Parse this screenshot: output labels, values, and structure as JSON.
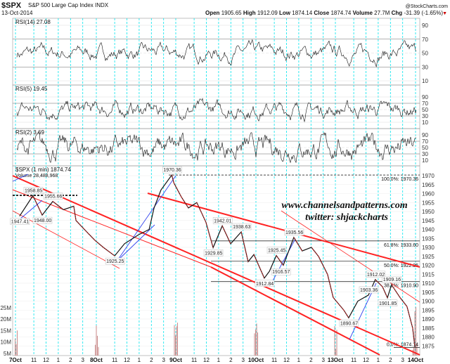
{
  "header": {
    "symbol": "$SPX",
    "name": "S&P 500 Large Cap Index INDX",
    "date": "13-Oct-2014",
    "credit": "@StockCharts.com",
    "open_label": "Open",
    "open": "1905.65",
    "high_label": "High",
    "high": "1912.09",
    "low_label": "Low",
    "low": "1874.14",
    "close_label": "Close",
    "close": "1874.74",
    "volume_label": "Volume",
    "volume": "27.7M",
    "chg_label": "Chg",
    "chg": "-31.39 (-1.65%)",
    "down_color": "#cc0000"
  },
  "watermark": {
    "line1": "www.channelsandpatterns.com",
    "line2": "twitter: shjackcharts"
  },
  "chart_data": {
    "type": "line",
    "panels": [
      {
        "indicator": "RSI(14)",
        "value": "27.08",
        "ticks": [
          90,
          70,
          50,
          30,
          10
        ]
      },
      {
        "indicator": "RSI(5)",
        "value": "19.45",
        "ticks": [
          90,
          70,
          50,
          30,
          10
        ]
      },
      {
        "indicator": "RSI(2)",
        "value": "3.69",
        "ticks": [
          90,
          70,
          50,
          30,
          10
        ]
      }
    ],
    "price": {
      "title": "$SPX (1 min) 1874.74",
      "volume_legend": "Volume 28,488,968",
      "ylim": [
        1872,
        1972
      ],
      "yticks": [
        1970,
        1965,
        1960,
        1955,
        1950,
        1945,
        1940,
        1935,
        1930,
        1925,
        1920,
        1915,
        1910,
        1905,
        1900,
        1895,
        1890,
        1885,
        1880,
        1875
      ],
      "volume_ticks": [
        "25M",
        "20M",
        "15M",
        "10M",
        "5M"
      ],
      "series": [
        [
          0,
          "09:50",
          1947.41
        ],
        [
          0,
          "10:56",
          1958.85
        ],
        [
          0,
          "11:41",
          1948.0
        ],
        [
          0,
          "12:33",
          1955.66
        ],
        [
          0,
          "13:25",
          1951
        ],
        [
          0,
          "14:16",
          1953
        ],
        [
          0,
          "14:27",
          1945
        ],
        [
          0,
          "15:25",
          1938
        ],
        [
          0,
          "15:59",
          1934
        ],
        [
          1,
          "10:04",
          1930
        ],
        [
          1,
          "11:00",
          1925.25
        ],
        [
          1,
          "11:48",
          1932
        ],
        [
          1,
          "12:57",
          1937
        ],
        [
          1,
          "13:49",
          1940
        ],
        [
          1,
          "14:13",
          1952
        ],
        [
          1,
          "14:47",
          1962
        ],
        [
          1,
          "15:40",
          1970.36
        ],
        [
          1,
          "15:50",
          1966
        ],
        [
          2,
          "09:58",
          1958
        ],
        [
          2,
          "10:32",
          1952
        ],
        [
          2,
          "11:13",
          1955
        ],
        [
          2,
          "11:58",
          1944
        ],
        [
          2,
          "12:33",
          1929.85
        ],
        [
          2,
          "13:18",
          1942.01
        ],
        [
          2,
          "13:59",
          1932
        ],
        [
          2,
          "14:51",
          1938.63
        ],
        [
          2,
          "15:25",
          1922
        ],
        [
          2,
          "15:53",
          1926
        ],
        [
          3,
          "10:11",
          1912.84
        ],
        [
          3,
          "10:36",
          1916.57
        ],
        [
          3,
          "11:10",
          1925.45
        ],
        [
          3,
          "11:44",
          1920
        ],
        [
          3,
          "12:36",
          1935.56
        ],
        [
          3,
          "13:17",
          1928
        ],
        [
          3,
          "14:02",
          1930
        ],
        [
          3,
          "14:37",
          1925
        ],
        [
          3,
          "15:21",
          1915
        ],
        [
          3,
          "15:49",
          1902
        ],
        [
          4,
          "10:11",
          1895
        ],
        [
          4,
          "10:35",
          1890.67
        ],
        [
          4,
          "11:20",
          1900
        ],
        [
          4,
          "12:12",
          1903.36
        ],
        [
          4,
          "12:46",
          1912.02
        ],
        [
          4,
          "13:21",
          1908
        ],
        [
          4,
          "13:45",
          1901.85
        ],
        [
          4,
          "14:05",
          1909.16
        ],
        [
          4,
          "14:47",
          1902
        ],
        [
          4,
          "15:21",
          1897
        ],
        [
          4,
          "15:49",
          1885
        ],
        [
          4,
          "16:00",
          1874.14
        ]
      ],
      "annotations": [
        {
          "text": "1947.41",
          "day": 0,
          "time": "09:50",
          "price": 1947.41,
          "pos": "below"
        },
        {
          "text": "1958.85",
          "day": 0,
          "time": "10:56",
          "price": 1958.85,
          "pos": "above"
        },
        {
          "text": "1955.66",
          "day": 0,
          "time": "12:33",
          "price": 1955.66,
          "pos": "above"
        },
        {
          "text": "1948.00",
          "day": 0,
          "time": "11:41",
          "price": 1948.0,
          "pos": "below"
        },
        {
          "text": "1925.25",
          "day": 1,
          "time": "11:00",
          "price": 1925.25,
          "pos": "below"
        },
        {
          "text": "1970.36",
          "day": 1,
          "time": "15:40",
          "price": 1970.36,
          "pos": "above"
        },
        {
          "text": "1929.85",
          "day": 2,
          "time": "12:33",
          "price": 1929.85,
          "pos": "below"
        },
        {
          "text": "1942.01",
          "day": 2,
          "time": "13:18",
          "price": 1942.01,
          "pos": "above"
        },
        {
          "text": "1938.63",
          "day": 2,
          "time": "14:51",
          "price": 1938.63,
          "pos": "above"
        },
        {
          "text": "1912.84",
          "day": 3,
          "time": "10:11",
          "price": 1912.84,
          "pos": "below"
        },
        {
          "text": "1916.57",
          "day": 3,
          "time": "10:36",
          "price": 1916.57,
          "pos": "right"
        },
        {
          "text": "1925.45",
          "day": 3,
          "time": "11:10",
          "price": 1925.45,
          "pos": "above"
        },
        {
          "text": "1935.56",
          "day": 3,
          "time": "12:36",
          "price": 1935.56,
          "pos": "above"
        },
        {
          "text": "1890.67",
          "day": 4,
          "time": "10:35",
          "price": 1890.67,
          "pos": "below"
        },
        {
          "text": "1903.36",
          "day": 4,
          "time": "12:12",
          "price": 1903.36,
          "pos": "above"
        },
        {
          "text": "1912.02",
          "day": 4,
          "time": "12:46",
          "price": 1912.02,
          "pos": "above"
        },
        {
          "text": "1909.16",
          "day": 4,
          "time": "14:05",
          "price": 1909.16,
          "pos": "above"
        },
        {
          "text": "1901.85",
          "day": 4,
          "time": "13:45",
          "price": 1901.85,
          "pos": "below"
        }
      ],
      "fib_levels": [
        {
          "label": "100.0%: 1970.36",
          "price": 1970.36
        },
        {
          "label": "61.8%: 1933.60",
          "price": 1933.6
        },
        {
          "label": "50.0%: 1922.25",
          "price": 1922.25
        },
        {
          "label": "38.2%: 1910.90",
          "price": 1910.9
        },
        {
          "label": "0.0%: 1874.14",
          "price": 1874.14
        }
      ]
    },
    "days": [
      "7Oct",
      "8Oct",
      "9Oct",
      "10Oct",
      "13Oct",
      "14Oct"
    ],
    "hour_ticks": [
      "11",
      "12",
      "1",
      "2",
      "3"
    ],
    "colors": {
      "price_up": "#111111",
      "price_down": "#cc2222",
      "volume": "#c98a8a",
      "channel": "#ff2222",
      "trend": "#3344ee",
      "session": "#00e5ee"
    }
  }
}
